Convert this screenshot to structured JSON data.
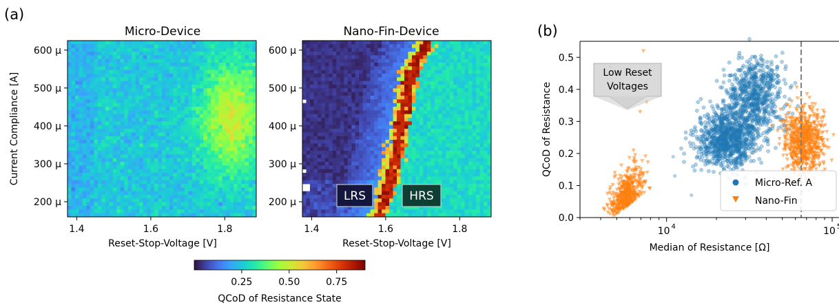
{
  "figure": {
    "label_a": "(a)",
    "label_b": "(b)"
  },
  "chart_data": [
    {
      "type": "heatmap",
      "title": "Micro-Device",
      "xlabel": "Reset-Stop-Voltage [V]",
      "ylabel": "Current Compliance [A]",
      "xlim": [
        1.375,
        1.885
      ],
      "ylim": [
        160,
        625
      ],
      "xticks": [
        1.4,
        1.6,
        1.8
      ],
      "xtick_labels": [
        "1.4",
        "1.6",
        "1.8"
      ],
      "yticks": [
        200,
        300,
        400,
        500,
        600
      ],
      "ytick_labels": [
        "200 μ",
        "300 μ",
        "400 μ",
        "500 μ",
        "600 μ"
      ],
      "description_of_values": "QCoD mostly 0.2-0.35, rising to ~0.5 near 1.8 V and 350-500 µA",
      "grid_cols": 50,
      "grid_rows": 48
    },
    {
      "type": "heatmap",
      "title": "Nano-Fin-Device",
      "xlabel": "Reset-Stop-Voltage [V]",
      "xlim": [
        1.375,
        1.885
      ],
      "ylim": [
        160,
        625
      ],
      "xticks": [
        1.4,
        1.6,
        1.8
      ],
      "xtick_labels": [
        "1.4",
        "1.6",
        "1.8"
      ],
      "yticks": [
        200,
        300,
        400,
        500,
        600
      ],
      "ytick_labels": [
        "200 μ",
        "300 μ",
        "400 μ",
        "500 μ",
        "600 μ"
      ],
      "annotations": [
        "LRS",
        "HRS"
      ],
      "boundary": {
        "points": [
          [
            1.58,
            160
          ],
          [
            1.61,
            250
          ],
          [
            1.63,
            350
          ],
          [
            1.65,
            450
          ],
          [
            1.67,
            550
          ],
          [
            1.71,
            620
          ]
        ]
      },
      "grid_cols": 50,
      "grid_rows": 48
    },
    {
      "type": "colorbar",
      "label": "QCoD of Resistance State",
      "range": [
        0.0,
        0.9
      ],
      "ticks": [
        0.25,
        0.5,
        0.75
      ],
      "tick_labels": [
        "0.25",
        "0.50",
        "0.75"
      ]
    },
    {
      "type": "scatter",
      "xlabel": "Median of Resistance [Ω]",
      "ylabel": "QCoD of Resistance",
      "xscale": "log",
      "xlim": [
        3000,
        110000
      ],
      "ylim": [
        0,
        0.55
      ],
      "yticks": [
        0.0,
        0.1,
        0.2,
        0.3,
        0.4,
        0.5
      ],
      "ytick_labels": [
        "0.0",
        "0.1",
        "0.2",
        "0.3",
        "0.4",
        "0.5"
      ],
      "xtick_base": "10",
      "xtick_exps": [
        "4",
        "5"
      ],
      "vline": 65000,
      "annotation": {
        "line1": "Low Reset",
        "line2": "Voltages"
      },
      "legend_position": "bottom-right",
      "series": [
        {
          "name": "Micro-Ref. A",
          "marker": "circle",
          "color": "#1f77b4",
          "clusters": [
            {
              "center_log10R": 4.36,
              "center_q": 0.24,
              "spread_log10R": 0.09,
              "spread_q": 0.045,
              "n": 900
            },
            {
              "center_log10R": 4.53,
              "center_q": 0.38,
              "spread_log10R": 0.09,
              "spread_q": 0.06,
              "n": 700
            }
          ]
        },
        {
          "name": "Nano-Fin",
          "marker": "triangle-down",
          "color": "#ff7f0e",
          "clusters": [
            {
              "center_log10R": 3.76,
              "center_q": 0.06,
              "spread_log10R": 0.05,
              "spread_q": 0.035,
              "n": 450
            },
            {
              "center_log10R": 4.83,
              "center_q": 0.24,
              "spread_log10R": 0.06,
              "spread_q": 0.05,
              "n": 700
            }
          ]
        }
      ]
    }
  ],
  "colors": {
    "vline": "#7f7f7f",
    "annotation_box": "#d3d3d3"
  }
}
